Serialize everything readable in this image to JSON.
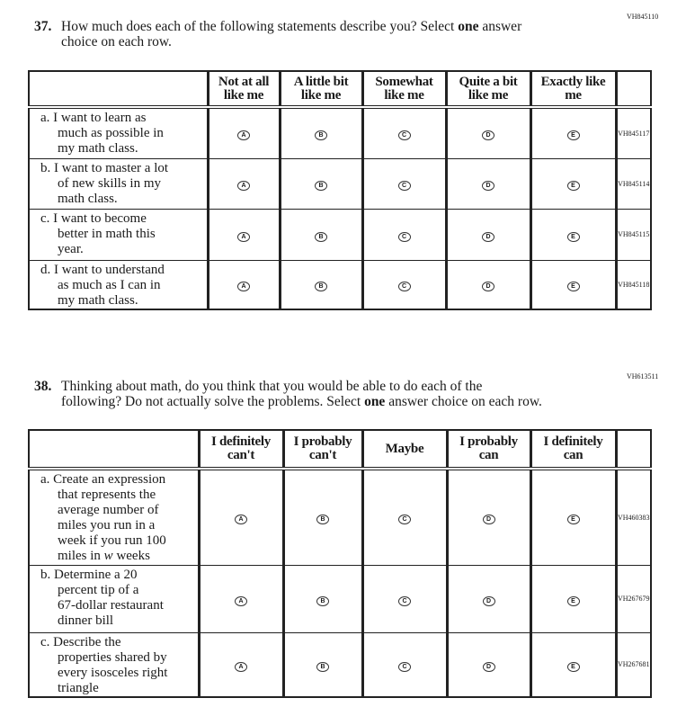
{
  "q37": {
    "id": "VH845110",
    "number": "37.",
    "text_before": "How much does each of the following statements describe you? Select ",
    "bold": "one",
    "text_after": " answer",
    "line2": "choice on each row.",
    "headers": [
      [
        "Not at all",
        "like me"
      ],
      [
        "A little bit",
        "like me"
      ],
      [
        "Somewhat",
        "like me"
      ],
      [
        "Quite a bit",
        "like me"
      ],
      [
        "Exactly like",
        "me"
      ]
    ],
    "rows": [
      {
        "lines": [
          "a. I want to learn as",
          "much as possible in",
          "my math class."
        ],
        "id": "VH845117"
      },
      {
        "lines": [
          "b. I want to master a lot",
          "of new skills in my",
          "math class."
        ],
        "id": "VH845114"
      },
      {
        "lines": [
          "c. I want to become",
          "better in math this",
          "year."
        ],
        "id": "VH845115"
      },
      {
        "lines": [
          "d. I want to understand",
          "as much as I can in",
          "my math class."
        ],
        "id": "VH845118"
      }
    ]
  },
  "q38": {
    "id": "VH613511",
    "number": "38.",
    "text_before": "Thinking about math, do you think that you would be able to do each of the",
    "line2_before": "following? Do not actually solve the problems. Select ",
    "bold": "one",
    "line2_after": " answer choice on each row.",
    "headers": [
      [
        "I definitely",
        "can't"
      ],
      [
        "I probably",
        "can't"
      ],
      [
        "Maybe",
        ""
      ],
      [
        "I probably",
        "can"
      ],
      [
        "I definitely",
        "can"
      ]
    ],
    "rows": [
      {
        "lines": [
          "a. Create an expression",
          "that represents the",
          "average number of",
          "miles you run in a",
          "week if you run 100",
          "miles in "
        ],
        "italic": "w",
        "after_italic": " weeks",
        "id": "VH460383"
      },
      {
        "lines": [
          "b. Determine a 20",
          "percent tip of a",
          "67-dollar restaurant",
          "dinner bill"
        ],
        "id": "VH267679"
      },
      {
        "lines": [
          "c. Describe the",
          "properties shared by",
          "every isosceles right",
          "triangle"
        ],
        "id": "VH267681"
      }
    ]
  },
  "options": [
    "A",
    "B",
    "C",
    "D",
    "E"
  ]
}
